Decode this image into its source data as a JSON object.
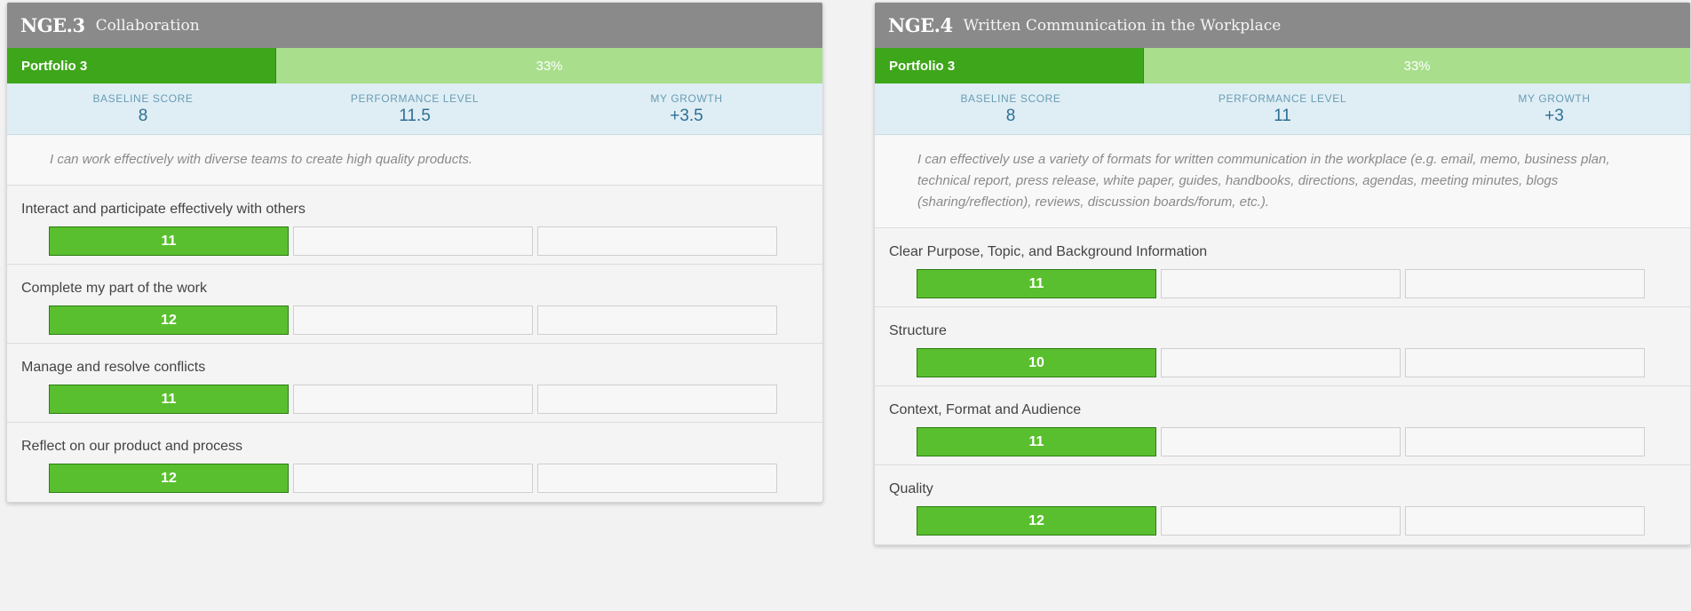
{
  "cards": [
    {
      "code": "NGE.3",
      "title": "Collaboration",
      "portfolio": "Portfolio 3",
      "progress": "33%",
      "progress_fraction": 0.33,
      "baseline_label": "BASELINE SCORE",
      "baseline_value": "8",
      "performance_label": "PERFORMANCE LEVEL",
      "performance_value": "11.5",
      "growth_label": "MY GROWTH",
      "growth_value": "+3.5",
      "description": "I can work effectively with diverse teams to create high quality products.",
      "skills": [
        {
          "name": "Interact and participate effectively with others",
          "score": "11"
        },
        {
          "name": "Complete my part of the work",
          "score": "12"
        },
        {
          "name": "Manage and resolve conflicts",
          "score": "11"
        },
        {
          "name": "Reflect on our product and process",
          "score": "12"
        }
      ]
    },
    {
      "code": "NGE.4",
      "title": "Written Communication in the Workplace",
      "portfolio": "Portfolio 3",
      "progress": "33%",
      "progress_fraction": 0.33,
      "baseline_label": "BASELINE SCORE",
      "baseline_value": "8",
      "performance_label": "PERFORMANCE LEVEL",
      "performance_value": "11",
      "growth_label": "MY GROWTH",
      "growth_value": "+3",
      "description": "I can effectively use a variety of formats for written communication in the workplace (e.g. email, memo, business plan, technical report, press release, white paper, guides, handbooks, directions, agendas, meeting minutes, blogs (sharing/reflection), reviews, discussion boards/forum, etc.).",
      "skills": [
        {
          "name": "Clear Purpose, Topic, and Background Information",
          "score": "11"
        },
        {
          "name": "Structure",
          "score": "10"
        },
        {
          "name": "Context, Format and Audience",
          "score": "11"
        },
        {
          "name": "Quality",
          "score": "12"
        }
      ]
    }
  ],
  "colors": {
    "header": "#8a8a8a",
    "progress_fill": "#3ea61a",
    "progress_track": "#a8de8c",
    "score_fill": "#5abf2e",
    "stats_bg": "#dfeef5"
  }
}
